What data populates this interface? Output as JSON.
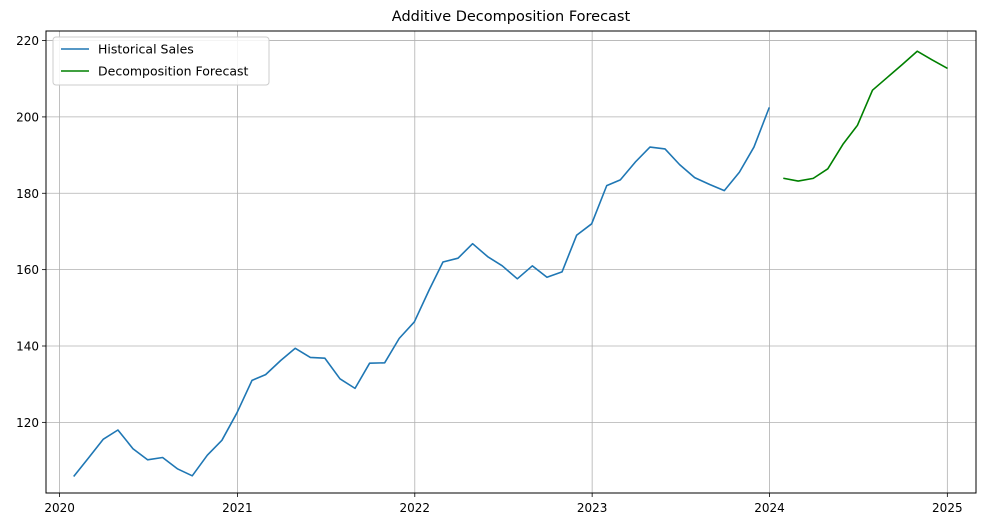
{
  "chart_data": {
    "type": "line",
    "title": "Additive Decomposition Forecast",
    "xlabel": "",
    "ylabel": "",
    "xlim": [
      "2019-12-04",
      "2025-03-01"
    ],
    "ylim": [
      101.5,
      222.5
    ],
    "x_ticks": [
      "2020-01-01",
      "2021-01-01",
      "2022-01-01",
      "2023-01-01",
      "2024-01-01",
      "2025-01-01"
    ],
    "x_tick_labels": [
      "2020",
      "2021",
      "2022",
      "2023",
      "2024",
      "2025"
    ],
    "y_ticks": [
      120,
      140,
      160,
      180,
      200,
      220
    ],
    "y_tick_labels": [
      "120",
      "140",
      "160",
      "180",
      "200",
      "220"
    ],
    "grid": true,
    "legend_position": "top-left",
    "series": [
      {
        "name": "Historical Sales",
        "color": "#1f77b4",
        "x": [
          "2020-01-31",
          "2020-02-29",
          "2020-03-31",
          "2020-04-30",
          "2020-05-31",
          "2020-06-30",
          "2020-07-31",
          "2020-08-31",
          "2020-09-30",
          "2020-10-31",
          "2020-11-30",
          "2020-12-31",
          "2021-01-31",
          "2021-02-28",
          "2021-03-31",
          "2021-04-30",
          "2021-05-31",
          "2021-06-30",
          "2021-07-31",
          "2021-08-31",
          "2021-09-30",
          "2021-10-31",
          "2021-11-30",
          "2021-12-31",
          "2022-01-31",
          "2022-02-28",
          "2022-03-31",
          "2022-04-30",
          "2022-05-31",
          "2022-06-30",
          "2022-07-31",
          "2022-08-31",
          "2022-09-30",
          "2022-10-31",
          "2022-11-30",
          "2022-12-31",
          "2023-01-31",
          "2023-02-28",
          "2023-03-31",
          "2023-04-30",
          "2023-05-31",
          "2023-06-30",
          "2023-07-31",
          "2023-08-31",
          "2023-09-30",
          "2023-10-31",
          "2023-11-30",
          "2023-12-31"
        ],
        "values": [
          106.0,
          110.6,
          115.6,
          118.0,
          113.1,
          110.2,
          110.8,
          107.8,
          106.0,
          111.4,
          115.3,
          122.5,
          131.0,
          132.5,
          136.2,
          139.4,
          137.0,
          136.8,
          131.4,
          128.9,
          135.5,
          135.6,
          142.0,
          146.3,
          154.8,
          162.0,
          163.0,
          166.8,
          163.4,
          161.0,
          157.6,
          161.0,
          158.0,
          159.4,
          169.0,
          172.0,
          182.0,
          183.5,
          188.2,
          192.1,
          191.6,
          187.5,
          184.1,
          182.3,
          180.7,
          185.5,
          192.1,
          202.3
        ]
      },
      {
        "name": "Decomposition Forecast",
        "color": "#008000",
        "x": [
          "2024-01-31",
          "2024-02-29",
          "2024-03-31",
          "2024-04-30",
          "2024-05-31",
          "2024-06-30",
          "2024-07-31",
          "2024-08-31",
          "2024-09-30",
          "2024-10-31",
          "2024-11-30",
          "2024-12-31"
        ],
        "values": [
          183.9,
          183.2,
          183.9,
          186.4,
          192.8,
          197.8,
          207.0,
          210.4,
          213.7,
          217.2,
          215.0,
          212.8
        ]
      }
    ]
  }
}
